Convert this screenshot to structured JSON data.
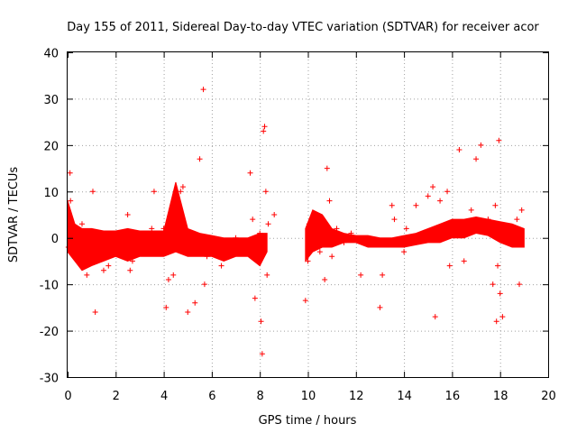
{
  "chart_data": {
    "type": "scatter",
    "title": "Day 155 of 2011, Sidereal Day-to-day VTEC variation (SDTVAR) for receiver acor",
    "xlabel": "GPS time / hours",
    "ylabel": "SDTVAR / TECUs",
    "xlim": [
      0,
      20
    ],
    "ylim": [
      -30,
      40
    ],
    "xticks": [
      "0",
      "2",
      "4",
      "6",
      "8",
      "10",
      "12",
      "14",
      "16",
      "18",
      "20"
    ],
    "yticks": [
      "-30",
      "-20",
      "-10",
      "0",
      "10",
      "20",
      "30",
      "40"
    ],
    "grid": true,
    "marker": "+",
    "color": "#ff0000",
    "series": [
      {
        "name": "SDTVAR",
        "x": [
          0.03,
          0.1,
          0.12,
          0.2,
          0.35,
          0.5,
          0.6,
          0.7,
          0.8,
          0.9,
          1.0,
          1.05,
          1.15,
          1.3,
          1.5,
          1.7,
          2.0,
          2.3,
          2.5,
          2.6,
          2.7,
          3.0,
          3.3,
          3.5,
          3.6,
          3.8,
          4.0,
          4.1,
          4.2,
          4.4,
          4.5,
          4.6,
          4.7,
          4.8,
          4.9,
          5.0,
          5.3,
          5.5,
          5.65,
          5.7,
          5.8,
          6.0,
          6.2,
          6.4,
          6.6,
          7.0,
          7.3,
          7.5,
          7.6,
          7.7,
          7.8,
          7.9,
          8.0,
          8.05,
          8.1,
          8.15,
          8.2,
          8.25,
          8.3,
          8.35,
          8.6,
          9.9,
          10.0,
          10.05,
          10.1,
          10.3,
          10.5,
          10.7,
          10.8,
          10.9,
          11.0,
          11.2,
          11.5,
          11.8,
          12.0,
          12.2,
          12.5,
          13.0,
          13.1,
          13.5,
          13.6,
          14.0,
          14.1,
          14.5,
          15.0,
          15.2,
          15.3,
          15.5,
          15.8,
          15.9,
          16.0,
          16.3,
          16.5,
          16.8,
          16.9,
          17.0,
          17.2,
          17.5,
          17.7,
          17.8,
          17.85,
          17.9,
          17.95,
          18.0,
          18.1,
          18.3,
          18.5,
          18.7,
          18.8,
          18.9
        ],
        "y": [
          -2.0,
          14.0,
          8.0,
          2.0,
          -2.0,
          -3.0,
          3.0,
          -5.0,
          -8.0,
          -4.0,
          -2.0,
          10.0,
          -16.0,
          -4.0,
          -7.0,
          -6.0,
          -3.0,
          -3.0,
          5.0,
          -7.0,
          -5.0,
          0.0,
          -2.0,
          2.0,
          10.0,
          -1.0,
          2.0,
          -15.0,
          -9.0,
          -8.0,
          0.0,
          5.0,
          10.0,
          11.0,
          -2.0,
          -16.0,
          -14.0,
          17.0,
          32.0,
          -10.0,
          -4.0,
          0.0,
          -2.0,
          -6.0,
          -2.0,
          0.0,
          -1.0,
          -3.0,
          14.0,
          4.0,
          -13.0,
          -5.0,
          1.0,
          -18.0,
          -25.0,
          23.0,
          24.0,
          10.0,
          -8.0,
          3.0,
          5.0,
          -13.5,
          -5.0,
          3.0,
          -1.0,
          2.0,
          -3.0,
          -9.0,
          15.0,
          8.0,
          -4.0,
          2.0,
          -1.0,
          1.0,
          0.0,
          -8.0,
          -1.0,
          -15.0,
          -8.0,
          7.0,
          4.0,
          -3.0,
          2.0,
          7.0,
          9.0,
          11.0,
          -17.0,
          8.0,
          10.0,
          -6.0,
          2.0,
          19.0,
          -5.0,
          6.0,
          2.0,
          17.0,
          20.0,
          4.0,
          -10.0,
          7.0,
          -18.0,
          -6.0,
          21.0,
          -12.0,
          -17.0,
          0.0,
          -1.0,
          4.0,
          -10.0,
          6.0
        ],
        "band": {
          "x": [
            0.0,
            0.3,
            0.6,
            1.0,
            1.5,
            2.0,
            2.5,
            3.0,
            3.5,
            4.0,
            4.5,
            5.0,
            5.5,
            6.0,
            6.5,
            7.0,
            7.5,
            8.0,
            8.3,
            9.9,
            10.2,
            10.6,
            11.0,
            11.5,
            12.0,
            12.5,
            13.0,
            13.5,
            14.0,
            14.5,
            15.0,
            15.5,
            16.0,
            16.5,
            17.0,
            17.5,
            18.0,
            18.5,
            19.0
          ],
          "upper": [
            8.0,
            3.0,
            2.0,
            2.0,
            1.5,
            1.5,
            2.0,
            1.5,
            1.5,
            1.5,
            12.0,
            2.0,
            1.0,
            0.5,
            0.0,
            0.0,
            0.0,
            1.0,
            1.0,
            2.0,
            6.0,
            5.0,
            2.0,
            1.0,
            0.5,
            0.5,
            0.0,
            0.0,
            0.5,
            1.0,
            2.0,
            3.0,
            4.0,
            4.0,
            4.5,
            4.0,
            3.5,
            3.0,
            2.0
          ],
          "lower": [
            -3.0,
            -5.0,
            -7.0,
            -6.0,
            -5.0,
            -4.0,
            -5.0,
            -4.0,
            -4.0,
            -4.0,
            -3.0,
            -4.0,
            -4.0,
            -4.0,
            -5.0,
            -4.0,
            -4.0,
            -6.0,
            -3.0,
            -5.0,
            -3.0,
            -2.0,
            -2.0,
            -1.0,
            -1.0,
            -2.0,
            -2.0,
            -2.0,
            -2.0,
            -1.5,
            -1.0,
            -1.0,
            0.0,
            0.0,
            1.0,
            0.5,
            -1.0,
            -2.0,
            -2.0
          ]
        }
      }
    ]
  }
}
